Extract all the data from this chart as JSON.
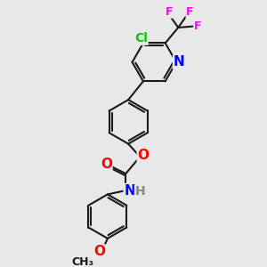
{
  "bg_color": "#e8e8e8",
  "bond_color": "#1a1a1a",
  "atom_colors": {
    "N": "#0000ff",
    "O": "#ff0000",
    "Cl": "#00cc00",
    "F": "#ff00ff",
    "H": "#888888"
  },
  "bond_width": 1.5,
  "font_size_atom": 10,
  "font_size_small": 9
}
